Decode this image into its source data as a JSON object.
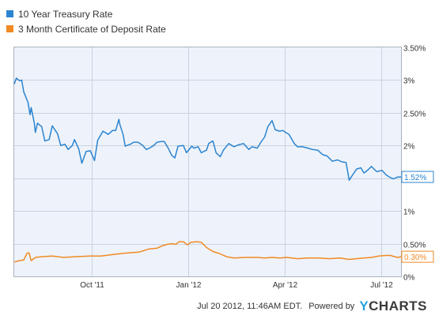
{
  "legend": {
    "items": [
      {
        "label": "10 Year Treasury Rate",
        "color": "#2b84d0"
      },
      {
        "label": "3 Month Certificate of Deposit Rate",
        "color": "#f08a24"
      }
    ]
  },
  "footer": {
    "timestamp": "Jul 20 2012, 11:46AM EDT.",
    "powered_by": "Powered by",
    "brand_y": "Y",
    "brand_rest": "CHARTS"
  },
  "chart_data": {
    "type": "line",
    "x_ticks": [
      {
        "date": "2011-10-01",
        "label": "Oct '11"
      },
      {
        "date": "2012-01-01",
        "label": "Jan '12"
      },
      {
        "date": "2012-04-01",
        "label": "Apr '12"
      },
      {
        "date": "2012-07-01",
        "label": "Jul '12"
      }
    ],
    "xlim": [
      "2011-07-20",
      "2012-07-20"
    ],
    "ylim": [
      0,
      3.5
    ],
    "y_ticks": [
      {
        "value": 0,
        "label": "0%"
      },
      {
        "value": 0.5,
        "label": "0.50%"
      },
      {
        "value": 1,
        "label": "1%"
      },
      {
        "value": 1.5,
        "label": "1.50%"
      },
      {
        "value": 2,
        "label": "2%"
      },
      {
        "value": 2.5,
        "label": "2.50%"
      },
      {
        "value": 3,
        "label": "3%"
      },
      {
        "value": 3.5,
        "label": "3.50%"
      }
    ],
    "grid": true,
    "plot_background": "#eef3fb",
    "series": [
      {
        "name": "10 Year Treasury Rate",
        "color": "#2b84d0",
        "last_label": "1.52%",
        "points": [
          [
            "2011-07-20",
            2.94
          ],
          [
            "2011-07-22",
            3.03
          ],
          [
            "2011-07-25",
            2.99
          ],
          [
            "2011-07-27",
            3.0
          ],
          [
            "2011-07-29",
            2.82
          ],
          [
            "2011-08-02",
            2.66
          ],
          [
            "2011-08-04",
            2.47
          ],
          [
            "2011-08-05",
            2.58
          ],
          [
            "2011-08-08",
            2.34
          ],
          [
            "2011-08-09",
            2.2
          ],
          [
            "2011-08-11",
            2.34
          ],
          [
            "2011-08-15",
            2.29
          ],
          [
            "2011-08-18",
            2.07
          ],
          [
            "2011-08-22",
            2.09
          ],
          [
            "2011-08-25",
            2.3
          ],
          [
            "2011-08-30",
            2.18
          ],
          [
            "2011-09-02",
            2.0
          ],
          [
            "2011-09-06",
            2.02
          ],
          [
            "2011-09-09",
            1.94
          ],
          [
            "2011-09-13",
            2.0
          ],
          [
            "2011-09-15",
            2.09
          ],
          [
            "2011-09-19",
            1.95
          ],
          [
            "2011-09-22",
            1.73
          ],
          [
            "2011-09-26",
            1.91
          ],
          [
            "2011-09-30",
            1.92
          ],
          [
            "2011-10-04",
            1.77
          ],
          [
            "2011-10-07",
            2.08
          ],
          [
            "2011-10-12",
            2.22
          ],
          [
            "2011-10-17",
            2.17
          ],
          [
            "2011-10-21",
            2.23
          ],
          [
            "2011-10-24",
            2.23
          ],
          [
            "2011-10-27",
            2.4
          ],
          [
            "2011-10-28",
            2.32
          ],
          [
            "2011-10-31",
            2.17
          ],
          [
            "2011-11-02",
            1.99
          ],
          [
            "2011-11-07",
            2.02
          ],
          [
            "2011-11-10",
            2.05
          ],
          [
            "2011-11-14",
            2.05
          ],
          [
            "2011-11-18",
            2.01
          ],
          [
            "2011-11-22",
            1.94
          ],
          [
            "2011-11-25",
            1.96
          ],
          [
            "2011-11-29",
            2.0
          ],
          [
            "2011-12-02",
            2.05
          ],
          [
            "2011-12-06",
            2.06
          ],
          [
            "2011-12-09",
            2.06
          ],
          [
            "2011-12-13",
            1.95
          ],
          [
            "2011-12-16",
            1.85
          ],
          [
            "2011-12-19",
            1.81
          ],
          [
            "2011-12-22",
            1.99
          ],
          [
            "2011-12-27",
            2.0
          ],
          [
            "2011-12-30",
            1.89
          ],
          [
            "2012-01-04",
            1.99
          ],
          [
            "2012-01-06",
            1.96
          ],
          [
            "2012-01-10",
            1.98
          ],
          [
            "2012-01-13",
            1.89
          ],
          [
            "2012-01-18",
            1.93
          ],
          [
            "2012-01-20",
            2.03
          ],
          [
            "2012-01-24",
            2.07
          ],
          [
            "2012-01-27",
            1.89
          ],
          [
            "2012-01-31",
            1.83
          ],
          [
            "2012-02-03",
            1.93
          ],
          [
            "2012-02-08",
            2.03
          ],
          [
            "2012-02-13",
            1.98
          ],
          [
            "2012-02-17",
            2.01
          ],
          [
            "2012-02-22",
            2.03
          ],
          [
            "2012-02-27",
            1.94
          ],
          [
            "2012-03-01",
            1.98
          ],
          [
            "2012-03-06",
            1.96
          ],
          [
            "2012-03-09",
            2.04
          ],
          [
            "2012-03-13",
            2.13
          ],
          [
            "2012-03-16",
            2.29
          ],
          [
            "2012-03-20",
            2.38
          ],
          [
            "2012-03-23",
            2.24
          ],
          [
            "2012-03-27",
            2.22
          ],
          [
            "2012-03-30",
            2.23
          ],
          [
            "2012-04-02",
            2.2
          ],
          [
            "2012-04-05",
            2.17
          ],
          [
            "2012-04-10",
            2.03
          ],
          [
            "2012-04-13",
            1.98
          ],
          [
            "2012-04-18",
            1.98
          ],
          [
            "2012-04-23",
            1.96
          ],
          [
            "2012-04-27",
            1.94
          ],
          [
            "2012-05-02",
            1.93
          ],
          [
            "2012-05-07",
            1.86
          ],
          [
            "2012-05-11",
            1.84
          ],
          [
            "2012-05-16",
            1.76
          ],
          [
            "2012-05-21",
            1.78
          ],
          [
            "2012-05-25",
            1.75
          ],
          [
            "2012-05-29",
            1.74
          ],
          [
            "2012-06-01",
            1.47
          ],
          [
            "2012-06-05",
            1.57
          ],
          [
            "2012-06-08",
            1.64
          ],
          [
            "2012-06-12",
            1.66
          ],
          [
            "2012-06-15",
            1.58
          ],
          [
            "2012-06-19",
            1.63
          ],
          [
            "2012-06-22",
            1.68
          ],
          [
            "2012-06-27",
            1.6
          ],
          [
            "2012-07-02",
            1.62
          ],
          [
            "2012-07-06",
            1.55
          ],
          [
            "2012-07-10",
            1.51
          ],
          [
            "2012-07-13",
            1.49
          ],
          [
            "2012-07-17",
            1.52
          ],
          [
            "2012-07-20",
            1.52
          ]
        ]
      },
      {
        "name": "3 Month Certificate of Deposit Rate",
        "color": "#f08a24",
        "last_label": "0.30%",
        "points": [
          [
            "2011-07-20",
            0.22
          ],
          [
            "2011-07-25",
            0.24
          ],
          [
            "2011-07-29",
            0.25
          ],
          [
            "2011-08-01",
            0.35
          ],
          [
            "2011-08-03",
            0.36
          ],
          [
            "2011-08-05",
            0.24
          ],
          [
            "2011-08-09",
            0.29
          ],
          [
            "2011-08-15",
            0.3
          ],
          [
            "2011-08-25",
            0.31
          ],
          [
            "2011-09-05",
            0.29
          ],
          [
            "2011-09-15",
            0.3
          ],
          [
            "2011-09-30",
            0.31
          ],
          [
            "2011-10-10",
            0.31
          ],
          [
            "2011-10-25",
            0.34
          ],
          [
            "2011-11-05",
            0.36
          ],
          [
            "2011-11-15",
            0.37
          ],
          [
            "2011-11-25",
            0.42
          ],
          [
            "2011-12-02",
            0.43
          ],
          [
            "2011-12-06",
            0.46
          ],
          [
            "2011-12-12",
            0.49
          ],
          [
            "2011-12-16",
            0.5
          ],
          [
            "2011-12-20",
            0.49
          ],
          [
            "2011-12-23",
            0.53
          ],
          [
            "2011-12-27",
            0.53
          ],
          [
            "2011-12-31",
            0.48
          ],
          [
            "2012-01-03",
            0.52
          ],
          [
            "2012-01-09",
            0.53
          ],
          [
            "2012-01-13",
            0.52
          ],
          [
            "2012-01-18",
            0.44
          ],
          [
            "2012-01-24",
            0.38
          ],
          [
            "2012-01-30",
            0.35
          ],
          [
            "2012-02-06",
            0.3
          ],
          [
            "2012-02-13",
            0.28
          ],
          [
            "2012-02-23",
            0.29
          ],
          [
            "2012-03-06",
            0.29
          ],
          [
            "2012-03-13",
            0.28
          ],
          [
            "2012-03-20",
            0.29
          ],
          [
            "2012-03-27",
            0.28
          ],
          [
            "2012-04-03",
            0.29
          ],
          [
            "2012-04-13",
            0.27
          ],
          [
            "2012-04-23",
            0.28
          ],
          [
            "2012-05-03",
            0.28
          ],
          [
            "2012-05-13",
            0.27
          ],
          [
            "2012-05-23",
            0.28
          ],
          [
            "2012-06-01",
            0.26
          ],
          [
            "2012-06-08",
            0.27
          ],
          [
            "2012-06-15",
            0.28
          ],
          [
            "2012-06-22",
            0.29
          ],
          [
            "2012-06-29",
            0.31
          ],
          [
            "2012-07-06",
            0.32
          ],
          [
            "2012-07-10",
            0.32
          ],
          [
            "2012-07-14",
            0.3
          ],
          [
            "2012-07-17",
            0.29
          ],
          [
            "2012-07-20",
            0.3
          ]
        ]
      }
    ]
  }
}
